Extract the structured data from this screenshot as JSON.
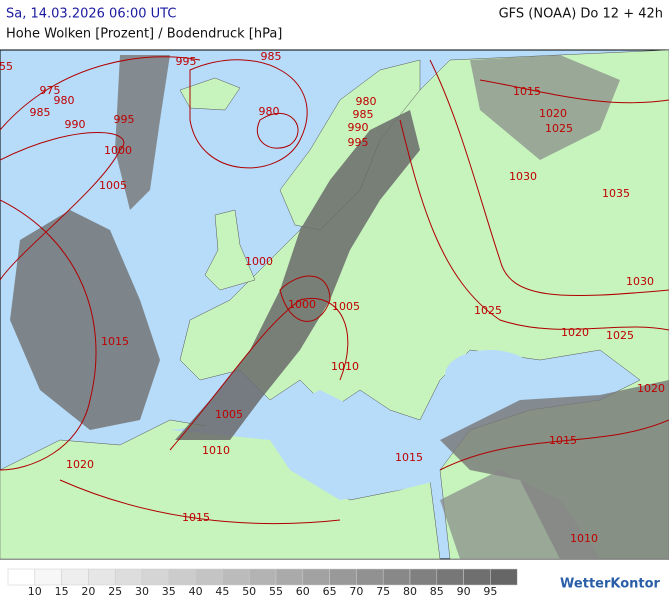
{
  "header": {
    "date": "Sa, 14.03.2026 06:00 UTC",
    "model": "GFS (NOAA) Do 12 + 42h",
    "subtitle": "Hohe Wolken [Prozent] / Bodendruck [hPa]"
  },
  "isobar_labels": [
    "55",
    975,
    980,
    985,
    990,
    995,
    995,
    985,
    980,
    980,
    985,
    990,
    995,
    1000,
    1005,
    1000,
    1000,
    1005,
    1015,
    1010,
    1005,
    1010,
    1020,
    1015,
    1015,
    1015,
    1010,
    1015,
    1020,
    1025,
    1030,
    1035,
    1030,
    1025,
    1020,
    1025,
    1020
  ],
  "legend": {
    "labels": [
      10,
      15,
      20,
      25,
      30,
      35,
      40,
      45,
      50,
      55,
      60,
      65,
      70,
      75,
      80,
      85,
      90,
      95
    ]
  },
  "logo": "WetterKontor"
}
